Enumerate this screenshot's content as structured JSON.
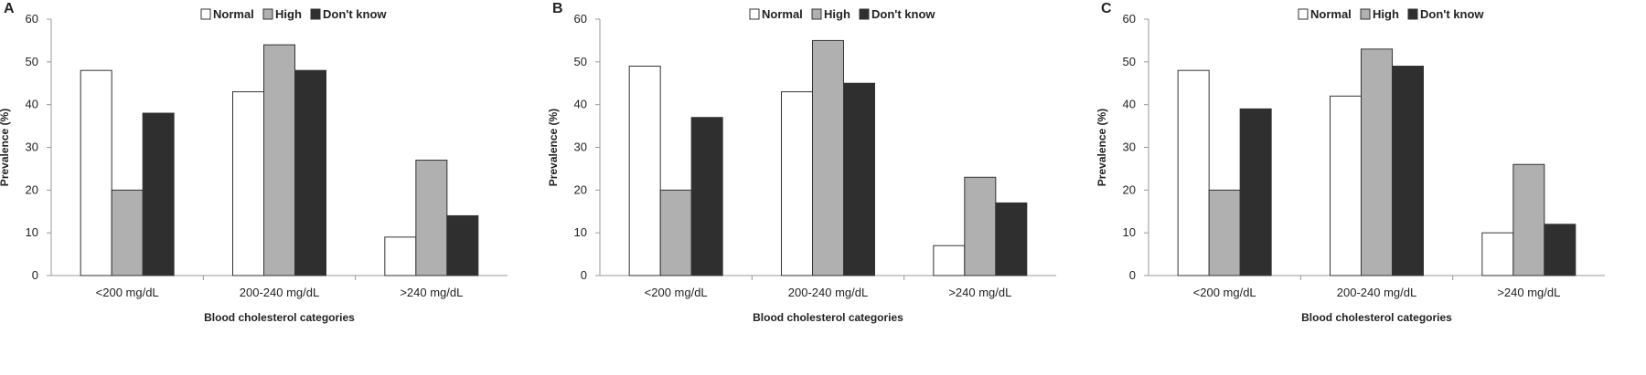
{
  "chart_data": [
    {
      "panel": "A",
      "type": "bar",
      "categories": [
        "<200 mg/dL",
        "200-240 mg/dL",
        ">240 mg/dL"
      ],
      "series": [
        {
          "name": "Normal",
          "values": [
            48,
            43,
            9
          ]
        },
        {
          "name": "High",
          "values": [
            20,
            54,
            27
          ]
        },
        {
          "name": "Don't know",
          "values": [
            38,
            48,
            14
          ]
        }
      ],
      "xlabel": "Blood cholesterol categories",
      "ylabel": "Prevalence (%)",
      "ylim": [
        0,
        60
      ],
      "yticks": [
        "0",
        "10",
        "20",
        "30",
        "40",
        "50",
        "60"
      ],
      "legend_position": "top-right",
      "grid": false
    },
    {
      "panel": "B",
      "type": "bar",
      "categories": [
        "<200 mg/dL",
        "200-240 mg/dL",
        ">240 mg/dL"
      ],
      "series": [
        {
          "name": "Normal",
          "values": [
            49,
            43,
            7
          ]
        },
        {
          "name": "High",
          "values": [
            20,
            55,
            23
          ]
        },
        {
          "name": "Don't know",
          "values": [
            37,
            45,
            17
          ]
        }
      ],
      "xlabel": "Blood cholesterol categories",
      "ylabel": "Prevalence (%)",
      "ylim": [
        0,
        60
      ],
      "yticks": [
        "0",
        "10",
        "20",
        "30",
        "40",
        "50",
        "60"
      ],
      "legend_position": "top-right",
      "grid": false
    },
    {
      "panel": "C",
      "type": "bar",
      "categories": [
        "<200 mg/dL",
        "200-240 mg/dL",
        ">240 mg/dL"
      ],
      "series": [
        {
          "name": "Normal",
          "values": [
            48,
            42,
            10
          ]
        },
        {
          "name": "High",
          "values": [
            20,
            53,
            26
          ]
        },
        {
          "name": "Don't know",
          "values": [
            39,
            49,
            12
          ]
        }
      ],
      "xlabel": "Blood cholesterol categories",
      "ylabel": "Prevalence (%)",
      "ylim": [
        0,
        60
      ],
      "yticks": [
        "0",
        "10",
        "20",
        "30",
        "40",
        "50",
        "60"
      ],
      "legend_position": "top-right",
      "grid": false
    }
  ],
  "colors": {
    "Normal": "#ffffff",
    "High": "#b0b0b0",
    "Don't know": "#2f2f2f",
    "stroke": "#333333",
    "axis": "#999999"
  }
}
